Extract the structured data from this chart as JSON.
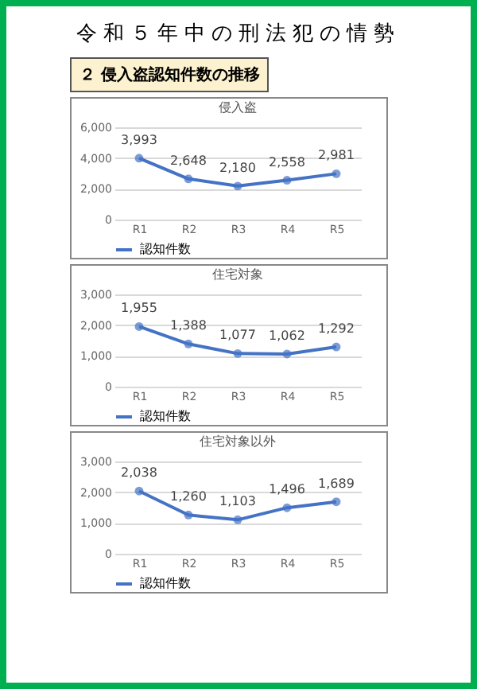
{
  "chart_data": [
    {
      "type": "line",
      "title": "侵入盗",
      "subtitle": "２ 侵入盗認知件数の推移",
      "annotations": [
        "令和５年中の刑法犯の情勢"
      ],
      "categories": [
        "R1",
        "R2",
        "R3",
        "R4",
        "R5"
      ],
      "series": [
        {
          "name": "認知件数",
          "color": "#4472c4",
          "values": [
            3993,
            2648,
            2180,
            2558,
            2981
          ],
          "value_labels": [
            "3,993",
            "2,648",
            "2,180",
            "2,558",
            "2,981"
          ]
        }
      ],
      "ylim": [
        0,
        6000
      ],
      "yticks": [
        {
          "value": 0,
          "label": "0"
        },
        {
          "value": 2000,
          "label": "2,000"
        },
        {
          "value": 4000,
          "label": "4,000"
        },
        {
          "value": 6000,
          "label": "6,000"
        }
      ],
      "grid": "y",
      "legend": "bottom",
      "marker": "circle"
    },
    {
      "type": "line",
      "title": "住宅対象",
      "categories": [
        "R1",
        "R2",
        "R3",
        "R4",
        "R5"
      ],
      "series": [
        {
          "name": "認知件数",
          "color": "#4472c4",
          "values": [
            1955,
            1388,
            1077,
            1062,
            1292
          ],
          "value_labels": [
            "1,955",
            "1,388",
            "1,077",
            "1,062",
            "1,292"
          ]
        }
      ],
      "ylim": [
        0,
        3000
      ],
      "yticks": [
        {
          "value": 0,
          "label": "0"
        },
        {
          "value": 1000,
          "label": "1,000"
        },
        {
          "value": 2000,
          "label": "2,000"
        },
        {
          "value": 3000,
          "label": "3,000"
        }
      ],
      "grid": "y",
      "legend": "bottom",
      "marker": "circle"
    },
    {
      "type": "line",
      "title": "住宅対象以外",
      "categories": [
        "R1",
        "R2",
        "R3",
        "R4",
        "R5"
      ],
      "series": [
        {
          "name": "認知件数",
          "color": "#4472c4",
          "values": [
            2038,
            1260,
            1103,
            1496,
            1689
          ],
          "value_labels": [
            "2,038",
            "1,260",
            "1,103",
            "1,496",
            "1,689"
          ]
        }
      ],
      "ylim": [
        0,
        3000
      ],
      "yticks": [
        {
          "value": 0,
          "label": "0"
        },
        {
          "value": 1000,
          "label": "1,000"
        },
        {
          "value": 2000,
          "label": "2,000"
        },
        {
          "value": 3000,
          "label": "3,000"
        }
      ],
      "grid": "y",
      "legend": "bottom",
      "marker": "circle"
    }
  ]
}
